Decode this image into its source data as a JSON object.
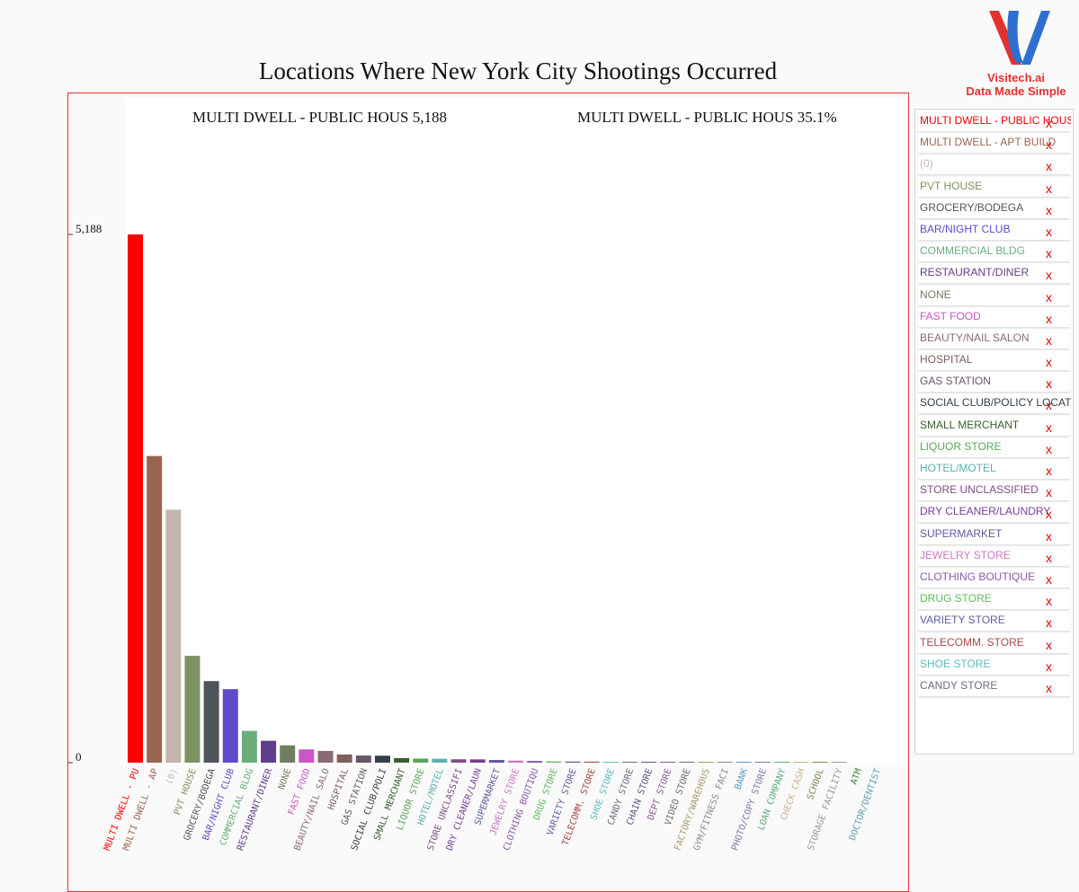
{
  "chart_data": {
    "type": "bar",
    "title": "Locations Where New York City Shootings Occurred",
    "categories": [
      "MULTI DWELL - PUBLIC HOUS",
      "MULTI DWELL - APT BUILD",
      "(0)",
      "PVT HOUSE",
      "GROCERY/BODEGA",
      "BAR/NIGHT CLUB",
      "COMMERCIAL BLDG",
      "RESTAURANT/DINER",
      "NONE",
      "FAST FOOD",
      "BEAUTY/NAIL SALON",
      "HOSPITAL",
      "GAS STATION",
      "SOCIAL CLUB/POLICY LOCATI",
      "SMALL MERCHANT",
      "LIQUOR STORE",
      "HOTEL/MOTEL",
      "STORE UNCLASSIFIED",
      "DRY CLEANER/LAUNDRY",
      "SUPERMARKET",
      "JEWELRY STORE",
      "CLOTHING BOUTIQUE",
      "DRUG STORE",
      "VARIETY STORE",
      "TELECOMM. STORE",
      "SHOE STORE",
      "CANDY STORE",
      "CHAIN STORE",
      "DEPT STORE",
      "VIDEO STORE",
      "FACTORY/WAREHOUS",
      "GYM/FITNESS FACI",
      "BANK",
      "PHOTO/COPY STORE",
      "LOAN COMPANY",
      "CHECK CASH",
      "SCHOOL",
      "STORAGE FACILITY",
      "ATM",
      "DOCTOR/DENTIST"
    ],
    "tick_labels": [
      "MULTI DWELL - PU",
      "MULTI DWELL - AP",
      "(0)",
      "PVT HOUSE",
      "GROCERY/BODEGA",
      "BAR/NIGHT CLUB",
      "COMMERCIAL BLDG",
      "RESTAURANT/DINER",
      "NONE",
      "FAST FOOD",
      "BEAUTY/NAIL SALO",
      "HOSPITAL",
      "GAS STATION",
      "SOCIAL CLUB/POLI",
      "SMALL MERCHANT",
      "LIQUOR STORE",
      "HOTEL/MOTEL",
      "STORE UNCLASSIFI",
      "DRY CLEANER/LAUN",
      "SUPERMARKET",
      "JEWELRY STORE",
      "CLOTHING BOUTIQU",
      "DRUG STORE",
      "VARIETY STORE",
      "TELECOMM. STORE",
      "SHOE STORE",
      "CANDY STORE",
      "CHAIN STORE",
      "DEPT STORE",
      "VIDEO STORE",
      "FACTORY/WAREHOUS",
      "GYM/FITNESS FACI",
      "BANK",
      "PHOTO/COPY STORE",
      "LOAN COMPANY",
      "CHECK CASH",
      "SCHOOL",
      "STORAGE FACILITY",
      "ATM",
      "DOCTOR/DENTIST"
    ],
    "values": [
      5188,
      3012,
      2485,
      1049,
      801,
      722,
      312,
      215,
      170,
      130,
      115,
      80,
      70,
      68,
      45,
      40,
      38,
      33,
      32,
      26,
      20,
      17,
      12,
      11,
      10,
      7,
      6,
      6,
      6,
      6,
      4,
      2,
      1,
      1,
      1,
      1,
      1,
      1,
      0,
      0
    ],
    "colors": [
      "#ff0000",
      "#9a6452",
      "#c5b4ac",
      "#7f9262",
      "#4e555a",
      "#5f4bc9",
      "#6aae7e",
      "#603d8a",
      "#6f7d60",
      "#c957c6",
      "#8a6a74",
      "#7c5e5c",
      "#665866",
      "#34404a",
      "#37612d",
      "#5aa65a",
      "#5ab0b0",
      "#7c4e82",
      "#7a3c9a",
      "#5c5a9a",
      "#cc78c2",
      "#8a5aa8",
      "#62b85c",
      "#5e5ea4",
      "#a84848",
      "#5cbcbc",
      "#6c6c80",
      "#58587c",
      "#8e5a8e",
      "#6a6a6a",
      "#aa9a6a",
      "#8a8a8a",
      "#5a9ac8",
      "#7a7aa8",
      "#5aa87a",
      "#c8b48a",
      "#7a8a4a",
      "#9a9a9a",
      "#3a8a3a",
      "#5aa0b0"
    ],
    "ylim": [
      0,
      5188
    ],
    "yticks": [
      "0",
      "5,188"
    ],
    "grid": false,
    "legend": "right"
  },
  "info": {
    "selected_value": "MULTI DWELL - PUBLIC HOUS  5,188",
    "selected_percent": "MULTI DWELL - PUBLIC HOUS  35.1%"
  },
  "logo": {
    "name": "Visitech.ai",
    "tagline": "Data Made Simple",
    "colors": [
      "#e53030",
      "#2f6fd0"
    ]
  },
  "legend_panel": {
    "remove_symbol": "x",
    "items": [
      {
        "label": "MULTI DWELL - PUBLIC HOUS",
        "color": "#ff0000"
      },
      {
        "label": "MULTI DWELL - APT BUILD",
        "color": "#9a6452"
      },
      {
        "label": "(0)",
        "color": "#c5b4ac"
      },
      {
        "label": "PVT HOUSE",
        "color": "#7f9262"
      },
      {
        "label": "GROCERY/BODEGA",
        "color": "#4e555a"
      },
      {
        "label": "BAR/NIGHT CLUB",
        "color": "#5f4bc9"
      },
      {
        "label": "COMMERCIAL BLDG",
        "color": "#6aae7e"
      },
      {
        "label": "RESTAURANT/DINER",
        "color": "#603d8a"
      },
      {
        "label": "NONE",
        "color": "#6f7d60"
      },
      {
        "label": "FAST FOOD",
        "color": "#c957c6"
      },
      {
        "label": "BEAUTY/NAIL SALON",
        "color": "#8a6a74"
      },
      {
        "label": "HOSPITAL",
        "color": "#7c5e5c"
      },
      {
        "label": "GAS STATION",
        "color": "#665866"
      },
      {
        "label": "SOCIAL CLUB/POLICY LOCATI",
        "color": "#34404a"
      },
      {
        "label": "SMALL MERCHANT",
        "color": "#37612d"
      },
      {
        "label": "LIQUOR STORE",
        "color": "#5aa65a"
      },
      {
        "label": "HOTEL/MOTEL",
        "color": "#5ab0b0"
      },
      {
        "label": "STORE UNCLASSIFIED",
        "color": "#7c4e82"
      },
      {
        "label": "DRY CLEANER/LAUNDRY",
        "color": "#7a3c9a"
      },
      {
        "label": "SUPERMARKET",
        "color": "#5c5a9a"
      },
      {
        "label": "JEWELRY STORE",
        "color": "#cc78c2"
      },
      {
        "label": "CLOTHING BOUTIQUE",
        "color": "#8a5aa8"
      },
      {
        "label": "DRUG STORE",
        "color": "#62b85c"
      },
      {
        "label": "VARIETY STORE",
        "color": "#5e5ea4"
      },
      {
        "label": "TELECOMM. STORE",
        "color": "#a84848"
      },
      {
        "label": "SHOE STORE",
        "color": "#5cbcbc"
      },
      {
        "label": "CANDY STORE",
        "color": "#6c6c80"
      }
    ]
  }
}
